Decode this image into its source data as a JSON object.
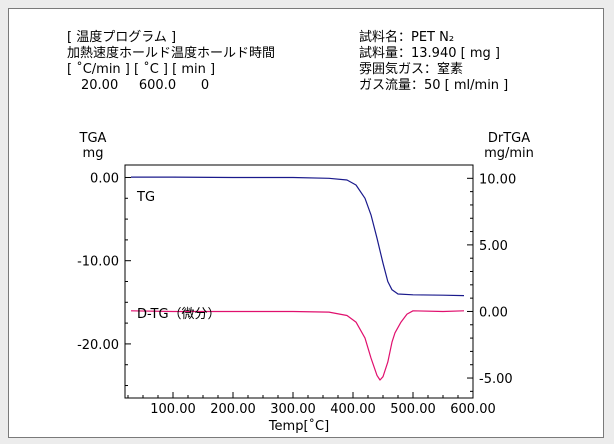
{
  "header_left": {
    "line1": "[ 温度プログラム ]",
    "line2": "加熱速度ホールド温度ホールド時間",
    "line3": "[ ˚C/min ] [ ˚C ] [ min ]",
    "line4": "20.00     600.0      0"
  },
  "header_right": {
    "sample_name": "試料名：PET N₂",
    "sample_amount": "試料量：13.940 [ mg ]",
    "atmosphere": "雰囲気ガス：窒素",
    "gas_flow": "ガス流量：50 [ ml/min ]"
  },
  "chart_data": {
    "type": "line",
    "xlabel": "Temp[˚C]",
    "xlim": [
      20,
      600
    ],
    "xticks": [
      100,
      200,
      300,
      400,
      500,
      600
    ],
    "xtick_labels": [
      "100.00",
      "200.00",
      "300.00",
      "400.00",
      "500.00",
      "600.00"
    ],
    "y_left": {
      "label_line1": "TGA",
      "label_line2": "mg",
      "lim": [
        -26.5,
        1.5
      ],
      "ticks": [
        0,
        -10,
        -20
      ],
      "tick_labels": [
        "0.00",
        "-10.00",
        "-20.00"
      ]
    },
    "y_right": {
      "label_line1": "DrTGA",
      "label_line2": "mg/min",
      "lim": [
        -6.5,
        11.0
      ],
      "ticks": [
        10,
        5,
        0,
        -5
      ],
      "tick_labels": [
        "10.00",
        "5.00",
        "0.00",
        "-5.00"
      ]
    },
    "series": [
      {
        "name": "TG",
        "axis": "left",
        "color": "#1a1a8c",
        "points": [
          [
            30,
            0.05
          ],
          [
            100,
            0.05
          ],
          [
            200,
            0.0
          ],
          [
            300,
            0.0
          ],
          [
            360,
            -0.1
          ],
          [
            390,
            -0.3
          ],
          [
            405,
            -0.9
          ],
          [
            420,
            -2.5
          ],
          [
            430,
            -4.5
          ],
          [
            440,
            -7.3
          ],
          [
            450,
            -10.3
          ],
          [
            458,
            -12.5
          ],
          [
            465,
            -13.5
          ],
          [
            475,
            -14.0
          ],
          [
            500,
            -14.1
          ],
          [
            550,
            -14.15
          ],
          [
            585,
            -14.2
          ]
        ]
      },
      {
        "name": "D-TG（微分）",
        "axis": "right",
        "color": "#e0106e",
        "points": [
          [
            30,
            0.05
          ],
          [
            100,
            0.0
          ],
          [
            200,
            0.0
          ],
          [
            300,
            0.0
          ],
          [
            360,
            -0.05
          ],
          [
            390,
            -0.3
          ],
          [
            405,
            -0.8
          ],
          [
            420,
            -2.0
          ],
          [
            430,
            -3.5
          ],
          [
            440,
            -4.8
          ],
          [
            445,
            -5.15
          ],
          [
            450,
            -4.9
          ],
          [
            458,
            -3.8
          ],
          [
            465,
            -2.3
          ],
          [
            470,
            -1.6
          ],
          [
            480,
            -0.8
          ],
          [
            490,
            -0.2
          ],
          [
            500,
            0.05
          ],
          [
            550,
            0.0
          ],
          [
            585,
            0.05
          ]
        ]
      }
    ]
  }
}
